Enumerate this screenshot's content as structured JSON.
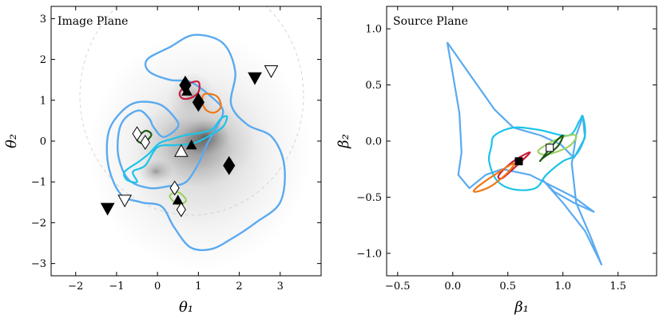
{
  "colors": {
    "critical": "#5aaaf0",
    "caustic": "#5aaaf0",
    "cyan": "#1cc4e8",
    "red": "#c81e3c",
    "orange": "#f07814",
    "lightgreen": "#9cd264",
    "darkgreen": "#1e5a14",
    "marker": "#000000"
  },
  "chart_data": [
    {
      "type": "scatter",
      "title": "Image Plane",
      "xlabel": "θ₁",
      "ylabel": "θ₂",
      "xlim": [
        -2.6,
        4.0
      ],
      "ylim": [
        -3.3,
        3.3
      ],
      "xticks": [
        -2,
        -1,
        0,
        1,
        2,
        3
      ],
      "yticks": [
        -3,
        -2,
        -1,
        0,
        1,
        2,
        3
      ],
      "grid": false,
      "background": "grayscale lens light",
      "curves": [
        {
          "color": "critical",
          "points": [
            [
              0.3,
              2.3
            ],
            [
              0.9,
              2.6
            ],
            [
              1.6,
              2.4
            ],
            [
              1.9,
              1.7
            ],
            [
              1.8,
              0.9
            ],
            [
              2.2,
              0.4
            ],
            [
              2.8,
              0.1
            ],
            [
              3.1,
              -0.6
            ],
            [
              3.0,
              -1.5
            ],
            [
              2.4,
              -2.0
            ],
            [
              1.8,
              -2.4
            ],
            [
              1.3,
              -2.65
            ],
            [
              0.8,
              -2.6
            ],
            [
              0.4,
              -2.1
            ],
            [
              0.1,
              -1.6
            ],
            [
              -0.4,
              -1.5
            ],
            [
              -0.9,
              -1.3
            ],
            [
              -1.2,
              -0.6
            ],
            [
              -1.2,
              0.2
            ],
            [
              -0.9,
              0.7
            ],
            [
              -0.5,
              0.95
            ],
            [
              0.05,
              0.9
            ],
            [
              0.4,
              0.6
            ],
            [
              0.5,
              0.35
            ],
            [
              0.15,
              0.1
            ],
            [
              -0.1,
              0.35
            ],
            [
              -0.2,
              0.55
            ],
            [
              -0.45,
              0.75
            ],
            [
              -0.8,
              0.55
            ],
            [
              -0.95,
              0.2
            ],
            [
              -0.95,
              -0.4
            ],
            [
              -0.7,
              -0.95
            ],
            [
              -0.2,
              -1.15
            ],
            [
              0.3,
              -1.1
            ],
            [
              0.7,
              -1.0
            ],
            [
              1.0,
              -0.55
            ],
            [
              1.2,
              -0.1
            ],
            [
              1.45,
              0.35
            ],
            [
              1.6,
              0.75
            ],
            [
              1.3,
              1.1
            ],
            [
              0.8,
              1.45
            ],
            [
              0.3,
              1.5
            ],
            [
              -0.2,
              1.7
            ],
            [
              -0.25,
              2.0
            ]
          ]
        },
        {
          "color": "cyan",
          "points": [
            [
              -0.6,
              -0.75
            ],
            [
              -0.3,
              -0.6
            ],
            [
              0.0,
              -0.15
            ],
            [
              0.45,
              -0.1
            ],
            [
              0.9,
              -0.05
            ],
            [
              1.3,
              0.15
            ],
            [
              1.6,
              0.35
            ],
            [
              1.7,
              0.6
            ],
            [
              1.55,
              0.55
            ],
            [
              1.35,
              0.3
            ],
            [
              1.05,
              0.2
            ],
            [
              0.7,
              0.15
            ],
            [
              0.35,
              0.05
            ],
            [
              0.05,
              -0.05
            ],
            [
              -0.2,
              -0.3
            ],
            [
              -0.45,
              -0.5
            ],
            [
              -0.8,
              -0.75
            ],
            [
              -0.75,
              -0.95
            ],
            [
              -0.5,
              -1.0
            ]
          ]
        },
        {
          "color": "red",
          "points": [
            [
              0.55,
              1.2
            ],
            [
              0.75,
              1.4
            ],
            [
              1.0,
              1.45
            ],
            [
              1.0,
              1.2
            ],
            [
              0.8,
              1.05
            ],
            [
              0.6,
              1.05
            ]
          ]
        },
        {
          "color": "orange",
          "points": [
            [
              1.15,
              1.15
            ],
            [
              1.45,
              1.1
            ],
            [
              1.55,
              0.85
            ],
            [
              1.4,
              0.7
            ],
            [
              1.2,
              0.75
            ],
            [
              1.1,
              0.95
            ]
          ]
        },
        {
          "color": "darkgreen",
          "points": [
            [
              -0.5,
              0.05
            ],
            [
              -0.3,
              0.25
            ],
            [
              -0.15,
              0.15
            ],
            [
              -0.35,
              -0.05
            ]
          ]
        },
        {
          "color": "lightgreen",
          "points": [
            [
              0.3,
              -1.35
            ],
            [
              0.5,
              -1.25
            ],
            [
              0.7,
              -1.45
            ],
            [
              0.5,
              -1.55
            ]
          ]
        }
      ],
      "markers": [
        {
          "shape": "diamond-filled",
          "x": 0.68,
          "y": 1.37
        },
        {
          "shape": "diamond-filled",
          "x": 1.0,
          "y": 0.95
        },
        {
          "shape": "diamond-filled",
          "x": 1.75,
          "y": -0.6
        },
        {
          "shape": "triangle-up-filled",
          "x": 0.72,
          "y": 1.22
        },
        {
          "shape": "triangle-up-filled",
          "x": 0.83,
          "y": -0.1
        },
        {
          "shape": "triangle-up-filled",
          "x": 0.5,
          "y": -1.45
        },
        {
          "shape": "triangle-up-open",
          "x": 0.58,
          "y": -0.25
        },
        {
          "shape": "triangle-down-filled",
          "x": 2.38,
          "y": 1.55
        },
        {
          "shape": "triangle-down-filled",
          "x": -1.22,
          "y": -1.65
        },
        {
          "shape": "triangle-down-open",
          "x": 2.78,
          "y": 1.72
        },
        {
          "shape": "triangle-down-open",
          "x": -0.8,
          "y": -1.45
        },
        {
          "shape": "diamond-open",
          "x": -0.5,
          "y": 0.18
        },
        {
          "shape": "diamond-open",
          "x": -0.3,
          "y": -0.03
        },
        {
          "shape": "diamond-open",
          "x": 0.42,
          "y": -1.15
        },
        {
          "shape": "diamond-open",
          "x": 0.58,
          "y": -1.68
        }
      ]
    },
    {
      "type": "scatter",
      "title": "Source Plane",
      "xlabel": "β₁",
      "ylabel": "β₂",
      "xlim": [
        -0.6,
        1.85
      ],
      "ylim": [
        -1.2,
        1.2
      ],
      "xticks": [
        -0.5,
        0.0,
        0.5,
        1.0,
        1.5
      ],
      "yticks": [
        -1.0,
        -0.5,
        0.0,
        0.5,
        1.0
      ],
      "ytick_labels": [
        "−1.0",
        "−0.5",
        "0.0",
        "0.5",
        "1.0"
      ],
      "xtick_labels": [
        "−0.5",
        "0.0",
        "0.5",
        "1.0",
        "1.5"
      ],
      "grid": false,
      "curves": [
        {
          "color": "caustic",
          "points": [
            [
              -0.05,
              0.88
            ],
            [
              0.15,
              0.6
            ],
            [
              0.38,
              0.28
            ],
            [
              0.55,
              0.12
            ],
            [
              0.8,
              0.05
            ],
            [
              0.98,
              -0.03
            ],
            [
              1.1,
              -0.15
            ],
            [
              1.2,
              0.03
            ],
            [
              1.18,
              0.22
            ],
            [
              1.12,
              0.05
            ],
            [
              1.08,
              -0.2
            ],
            [
              1.12,
              -0.55
            ],
            [
              1.25,
              -0.85
            ],
            [
              1.35,
              -1.1
            ],
            [
              1.2,
              -0.8
            ],
            [
              1.0,
              -0.55
            ],
            [
              0.82,
              -0.35
            ],
            [
              0.92,
              -0.45
            ],
            [
              1.1,
              -0.55
            ],
            [
              1.28,
              -0.63
            ],
            [
              1.1,
              -0.5
            ],
            [
              0.9,
              -0.4
            ],
            [
              0.7,
              -0.3
            ],
            [
              0.45,
              -0.25
            ],
            [
              0.3,
              -0.3
            ],
            [
              0.15,
              -0.42
            ],
            [
              0.05,
              -0.3
            ],
            [
              0.08,
              -0.1
            ],
            [
              0.06,
              0.25
            ],
            [
              0.0,
              0.6
            ],
            [
              -0.05,
              0.88
            ]
          ]
        },
        {
          "color": "cyan",
          "points": [
            [
              0.38,
              0.05
            ],
            [
              0.55,
              0.12
            ],
            [
              0.78,
              0.1
            ],
            [
              1.05,
              0.05
            ],
            [
              1.15,
              0.18
            ],
            [
              1.18,
              0.22
            ],
            [
              1.2,
              0.05
            ],
            [
              1.12,
              -0.12
            ],
            [
              1.0,
              -0.18
            ],
            [
              0.85,
              -0.3
            ],
            [
              0.75,
              -0.42
            ],
            [
              0.55,
              -0.43
            ],
            [
              0.4,
              -0.35
            ],
            [
              0.33,
              -0.18
            ],
            [
              0.35,
              -0.05
            ]
          ]
        },
        {
          "color": "red",
          "points": [
            [
              0.42,
              -0.3
            ],
            [
              0.55,
              -0.18
            ],
            [
              0.7,
              -0.1
            ],
            [
              0.6,
              -0.2
            ],
            [
              0.45,
              -0.33
            ]
          ]
        },
        {
          "color": "orange",
          "points": [
            [
              0.2,
              -0.43
            ],
            [
              0.35,
              -0.32
            ],
            [
              0.55,
              -0.2
            ],
            [
              0.5,
              -0.28
            ],
            [
              0.35,
              -0.4
            ],
            [
              0.22,
              -0.45
            ]
          ]
        },
        {
          "color": "lightgreen",
          "points": [
            [
              0.78,
              -0.08
            ],
            [
              0.98,
              0.03
            ],
            [
              1.12,
              0.05
            ],
            [
              1.05,
              -0.05
            ],
            [
              0.85,
              -0.12
            ]
          ]
        },
        {
          "color": "darkgreen",
          "points": [
            [
              0.8,
              -0.17
            ],
            [
              0.92,
              -0.02
            ],
            [
              1.0,
              0.05
            ],
            [
              0.95,
              -0.05
            ],
            [
              0.82,
              -0.15
            ]
          ]
        }
      ],
      "markers": [
        {
          "shape": "square-filled",
          "x": 0.6,
          "y": -0.18
        },
        {
          "shape": "square-open",
          "x": 0.88,
          "y": -0.06
        }
      ]
    }
  ]
}
